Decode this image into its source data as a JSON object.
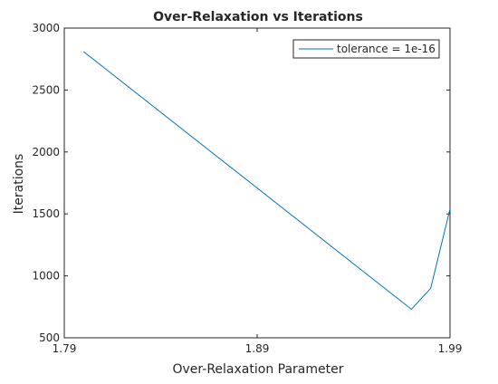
{
  "chart_data": {
    "type": "line",
    "title": "Over-Relaxation vs Iterations",
    "xlabel": "Over-Relaxation Parameter",
    "ylabel": "Iterations",
    "xlim": [
      1.79,
      1.99
    ],
    "ylim": [
      500,
      3000
    ],
    "xticks": [
      1.79,
      1.89,
      1.99
    ],
    "xtick_labels": [
      "1.79",
      "1.89",
      "1.99"
    ],
    "yticks": [
      500,
      1000,
      1500,
      2000,
      2500,
      3000
    ],
    "ytick_labels": [
      "500",
      "1000",
      "1500",
      "2000",
      "2500",
      "3000"
    ],
    "grid": false,
    "legend_position": "top-right",
    "series": [
      {
        "name": "tolerance = 1e-16",
        "color": "#0072bd",
        "x": [
          1.8,
          1.97,
          1.98,
          1.99
        ],
        "y": [
          2810,
          730,
          900,
          1540
        ]
      }
    ]
  }
}
